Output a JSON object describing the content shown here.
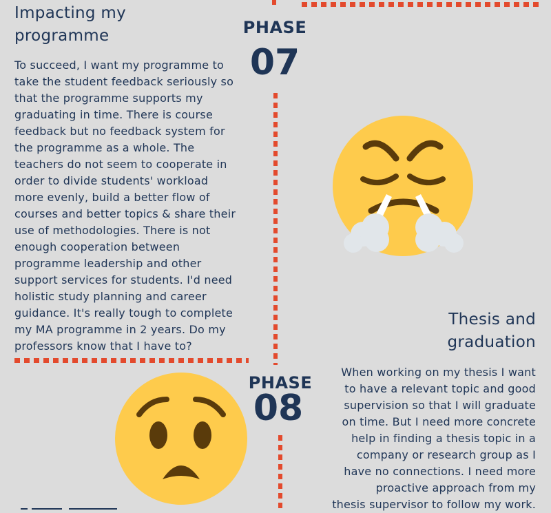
{
  "phase07": {
    "label": "PHASE",
    "number": "07",
    "heading_line1": "Impacting my",
    "heading_line2": "programme",
    "body_lines": [
      "To succeed, I want my programme to",
      "take the student feedback seriously so",
      "that the programme supports my",
      "graduating in time. There is course",
      "feedback but no feedback system for",
      "the programme as a whole. The",
      "teachers do not seem to cooperate in",
      "order to divide students' workload",
      "more evenly, build a better flow of",
      "courses and better topics & share their",
      "use of methodologies. There is not",
      "enough cooperation between",
      "programme leadership and other",
      "support services for students. I'd need",
      "holistic study planning and career",
      "guidance. It's really tough to complete",
      "my MA programme in 2 years. Do my",
      "professors know that I have to?"
    ],
    "emoji": "steaming-angry-face-icon"
  },
  "phase08": {
    "label": "PHASE",
    "number": "08",
    "heading_line1": "Thesis and",
    "heading_line2": "graduation",
    "body_lines": [
      "When working on my thesis I want",
      "to have a relevant topic and good",
      "supervision so that I will graduate",
      "on time. But I need more concrete",
      "help in finding a thesis topic in a",
      "company or research group as I",
      "have no connections. I need more",
      "proactive approach from my",
      "thesis supervisor to follow my work."
    ],
    "emoji": "worried-face-icon"
  },
  "colors": {
    "background": "#dcdcdc",
    "text": "#1f3556",
    "dots": "#e34a2d",
    "emoji_yellow": "#fecb4c",
    "emoji_brown": "#5a3b0b"
  }
}
